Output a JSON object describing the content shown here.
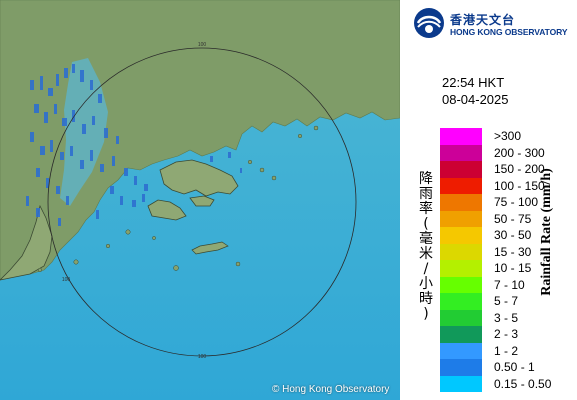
{
  "header": {
    "logo_zh": "香港天文台",
    "logo_en": "HONG KONG OBSERVATORY"
  },
  "timestamp": {
    "time": "22:54 HKT",
    "date": "08-04-2025"
  },
  "map": {
    "range_ring_label": "100",
    "copyright": "© Hong Kong Observatory"
  },
  "legend": {
    "title_zh": "降雨率(毫米/小時)",
    "title_en": "Rainfall Rate (mm/h)",
    "items": [
      {
        "label": ">300",
        "color": "#ff00ff"
      },
      {
        "label": "200 - 300",
        "color": "#cc0099"
      },
      {
        "label": "150 - 200",
        "color": "#cc0033"
      },
      {
        "label": "100 - 150",
        "color": "#ee1c00"
      },
      {
        "label": "75 - 100",
        "color": "#ee7700"
      },
      {
        "label": "50 - 75",
        "color": "#f0a000"
      },
      {
        "label": "30 - 50",
        "color": "#f5c800"
      },
      {
        "label": "15 - 30",
        "color": "#dcd800"
      },
      {
        "label": "10 - 15",
        "color": "#b4f000"
      },
      {
        "label": "7 - 10",
        "color": "#66ff00"
      },
      {
        "label": "5 - 7",
        "color": "#33ee22"
      },
      {
        "label": "3 - 5",
        "color": "#22cc33"
      },
      {
        "label": "2 - 3",
        "color": "#11995a"
      },
      {
        "label": "1 - 2",
        "color": "#3399ff"
      },
      {
        "label": "0.50 - 1",
        "color": "#1e7ce8"
      },
      {
        "label": "0.15 - 0.50",
        "color": "#00c8ff"
      }
    ]
  },
  "colors": {
    "sea": "#3fb3d6",
    "land": "#7d9b63",
    "logo_blue": "#0b3a8c",
    "echo": "#2e6fd0"
  }
}
